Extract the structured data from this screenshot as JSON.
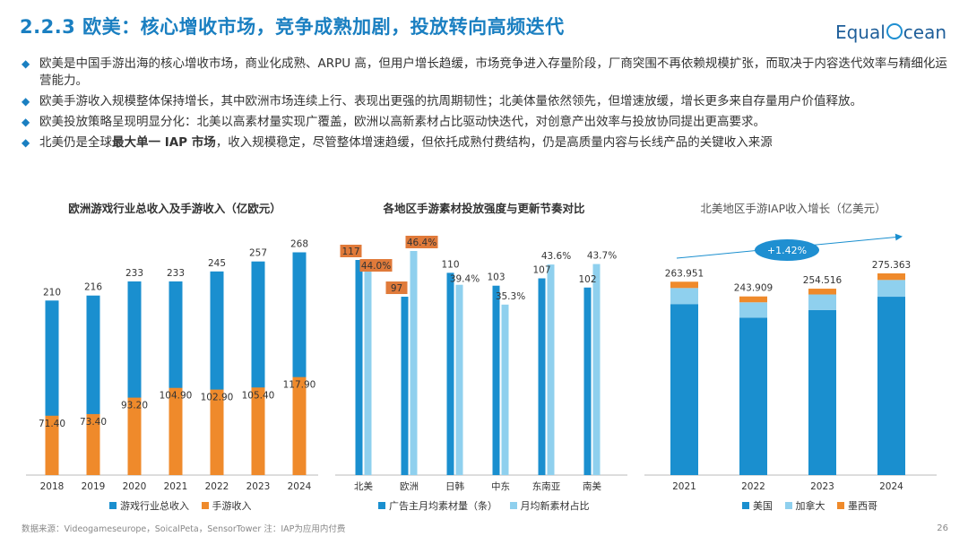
{
  "header": {
    "title": "2.2.3 欧美：核心增收市场，竞争成熟加剧，投放转向高频迭代",
    "logo_pre": "Equal",
    "logo_post": "cean"
  },
  "bullets": [
    {
      "text": "欧美是中国手游出海的核心增收市场，商业化成熟、ARPU 高，但用户增长趋缓，市场竞争进入存量阶段，厂商突围不再依赖规模扩张，而取决于内容迭代效率与精细化运营能力。"
    },
    {
      "text": "欧美手游收入规模整体保持增长，其中欧洲市场连续上行、表现出更强的抗周期韧性；北美体量依然领先，但增速放缓，增长更多来自存量用户价值释放。"
    },
    {
      "text": "欧美投放策略呈现明显分化：北美以高素材量实现广覆盖，欧洲以高新素材占比驱动快迭代，对创意产出效率与投放协同提出更高要求。"
    },
    {
      "pre": "北美仍是全球",
      "bold": "最大单一 IAP 市场",
      "post": "，收入规模稳定，尽管整体增速趋缓，但依托成熟付费结构，仍是高质量内容与长线产品的关键收入来源"
    }
  ],
  "colors": {
    "blue": "#1a8fcf",
    "orange": "#ef8a2b",
    "light": "#8fd0ee",
    "red": "#e07a3a",
    "title": "#1a7fc1"
  },
  "chart_data": [
    {
      "type": "bar",
      "title": "欧洲游戏行业总收入及手游收入（亿欧元）",
      "categories": [
        "2018",
        "2019",
        "2020",
        "2021",
        "2022",
        "2023",
        "2024"
      ],
      "series": [
        {
          "name": "游戏行业总收入",
          "values": [
            210,
            216,
            233,
            233,
            245,
            257,
            268
          ],
          "labels": [
            "210",
            "216",
            "233",
            "233",
            "245",
            "257",
            "268"
          ]
        },
        {
          "name": "手游收入",
          "values": [
            71.4,
            73.4,
            93.2,
            104.9,
            102.9,
            105.4,
            117.9
          ],
          "labels": [
            "71.40",
            "73.40",
            "93.20",
            "104.90",
            "102.90",
            "105.40",
            "117.90"
          ]
        }
      ],
      "ylim": [
        0,
        300
      ]
    },
    {
      "type": "bar",
      "title": "各地区手游素材投放强度与更新节奏对比",
      "categories": [
        "北美",
        "欧洲",
        "日韩",
        "中东",
        "东南亚",
        "南美"
      ],
      "series": [
        {
          "name": "广告主月均素材量（条）",
          "values": [
            117,
            97,
            110,
            103,
            107,
            102
          ],
          "labels": [
            "117",
            "97",
            "110",
            "103",
            "107",
            "102"
          ]
        },
        {
          "name": "月均新素材占比",
          "values": [
            44.0,
            46.4,
            39.4,
            35.3,
            43.6,
            43.7
          ],
          "labels": [
            "44.0%",
            "46.4%",
            "39.4%",
            "35.3%",
            "43.6%",
            "43.7%"
          ]
        }
      ],
      "highlighted": [
        "117",
        "44.0%",
        "97",
        "46.4%"
      ]
    },
    {
      "type": "bar",
      "stacked": true,
      "title": "北美地区手游IAP收入增长（亿美元）",
      "categories": [
        "2021",
        "2022",
        "2023",
        "2024"
      ],
      "totals": [
        "263.951",
        "243.909",
        "254.516",
        "275.363"
      ],
      "series": [
        {
          "name": "美国",
          "values": [
            233.5,
            215.0,
            225.4,
            243.5
          ]
        },
        {
          "name": "加拿大",
          "values": [
            21.9,
            20.9,
            21.2,
            22.9
          ]
        },
        {
          "name": "墨西哥",
          "values": [
            8.6,
            8.0,
            7.9,
            9.0
          ]
        }
      ],
      "annotation": "+1.42%"
    }
  ],
  "footer": {
    "source": "数据来源：Videogameseurope，SoicalPeta，SensorTower 注：IAP为应用内付费",
    "page": "26"
  }
}
